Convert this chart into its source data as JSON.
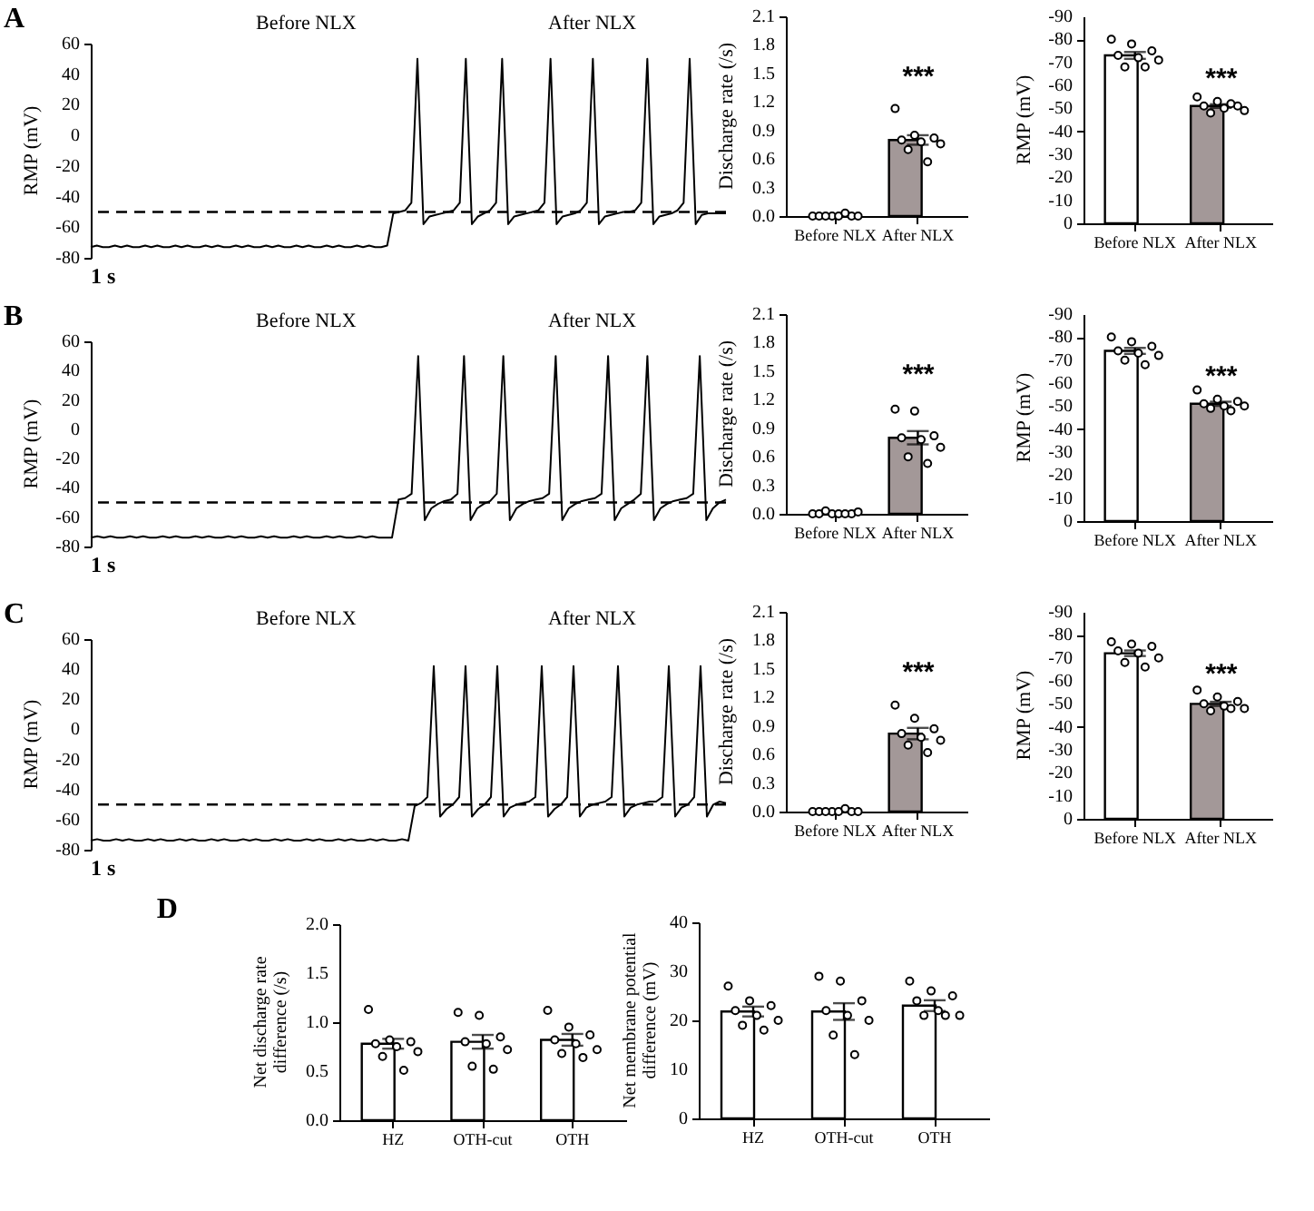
{
  "chart_data": [
    {
      "type": "line",
      "ylabel": "RMP (mV)",
      "ylim": [
        -80,
        60
      ],
      "yticks": [
        -80,
        -60,
        -40,
        -20,
        0,
        20,
        40,
        60
      ],
      "tick_labels": "y",
      "annotations": [
        "A",
        "Before NLX",
        "After NLX",
        "1 s"
      ],
      "ref_lines": [
        {
          "axis": "y",
          "value": -50,
          "line_style": "dashed",
          "color": "#000000"
        }
      ],
      "categories": [
        null,
        null,
        null,
        null,
        null,
        null,
        null,
        null,
        null,
        null,
        null,
        null,
        null,
        null,
        null,
        null,
        null,
        null,
        null,
        null,
        null,
        null,
        null,
        null,
        null,
        null,
        null,
        null,
        null,
        null,
        null,
        null,
        null,
        null,
        null,
        null,
        null,
        null,
        null,
        null,
        null,
        null,
        null,
        null,
        null,
        null,
        null,
        null,
        null,
        null,
        null,
        null,
        null,
        null,
        null,
        null,
        null,
        null,
        null,
        null,
        null,
        null,
        null,
        null,
        null,
        null,
        null,
        null,
        null,
        null,
        null,
        null,
        null,
        null,
        null,
        null,
        null,
        null,
        null,
        null,
        null,
        null,
        null,
        null,
        null,
        null,
        null,
        null,
        null,
        null,
        null,
        null,
        null,
        null,
        null,
        null,
        null,
        null,
        null,
        null,
        null,
        null,
        null,
        null,
        null,
        null
      ],
      "series": [
        {
          "type": "line",
          "color": "#000000",
          "values": [
            -73,
            -72,
            -73,
            -73,
            -72,
            -73,
            -72,
            -73,
            -73,
            -72,
            -73,
            -72,
            -73,
            -73,
            -72,
            -73,
            -72,
            -73,
            -73,
            -72,
            -73,
            -72,
            -73,
            -73,
            -72,
            -73,
            -72,
            -73,
            -73,
            -72,
            -73,
            -72,
            -73,
            -73,
            -72,
            -73,
            -72,
            -73,
            -73,
            -72,
            -73,
            -72,
            -73,
            -73,
            -72,
            -73,
            -72,
            -73,
            -73,
            -72,
            -51,
            -50,
            -49,
            -44,
            50,
            -58,
            -53,
            -52,
            -51,
            -50,
            -49,
            -44,
            50,
            -58,
            -53,
            -51,
            -49,
            -44,
            50,
            -58,
            -53,
            -52,
            -51,
            -50,
            -49,
            -44,
            50,
            -58,
            -53,
            -52,
            -51,
            -49,
            -44,
            50,
            -58,
            -53,
            -52,
            -51,
            -50,
            -50,
            -49,
            -44,
            50,
            -58,
            -53,
            -52,
            -51,
            -49,
            -44,
            50,
            -58,
            -52,
            -51,
            -51,
            -51,
            -51
          ]
        }
      ]
    },
    {
      "type": "bar",
      "categories": [
        "Before NLX",
        "After NLX"
      ],
      "ylabel": "Discharge rate (/s)",
      "ylim": [
        0,
        2.1
      ],
      "yticks": [
        {
          "value": 0,
          "label": "0.0"
        },
        0.3,
        0.6,
        0.9,
        1.2,
        1.5,
        1.8,
        2.1
      ],
      "annotations": [
        "***"
      ],
      "series": [
        {
          "type": "bar",
          "colors": [
            "#ffffff",
            "#a39898"
          ],
          "values": [
            0,
            0.8
          ],
          "errors": [
            null,
            0.05
          ]
        },
        {
          "type": "scatter",
          "color": "#000000",
          "marker": "circle",
          "x": [
            "Before NLX",
            "Before NLX",
            "Before NLX",
            "Before NLX",
            "Before NLX",
            "Before NLX",
            "Before NLX",
            "Before NLX",
            "After NLX",
            "After NLX",
            "After NLX",
            "After NLX",
            "After NLX",
            "After NLX",
            "After NLX",
            "After NLX"
          ],
          "values": [
            0,
            0,
            0,
            0,
            0,
            0,
            0,
            0.03,
            1.13,
            0.85,
            0.82,
            0.8,
            0.78,
            0.76,
            0.7,
            0.57
          ]
        }
      ]
    },
    {
      "type": "bar",
      "categories": [
        "Before NLX",
        "After NLX"
      ],
      "ylabel": "RMP (mV)",
      "ylim": [
        0,
        -90
      ],
      "yticks": [
        -90,
        -80,
        -70,
        -60,
        -50,
        -40,
        -30,
        -20,
        -10,
        0
      ],
      "annotations": [
        "***"
      ],
      "series": [
        {
          "type": "bar",
          "colors": [
            "#ffffff",
            "#a39898"
          ],
          "values": [
            -73,
            -51
          ],
          "errors": [
            1.5,
            0.8
          ]
        },
        {
          "type": "scatter",
          "color": "#000000",
          "marker": "circle",
          "x": [
            "Before NLX",
            "Before NLX",
            "Before NLX",
            "Before NLX",
            "Before NLX",
            "Before NLX",
            "Before NLX",
            "Before NLX",
            "After NLX",
            "After NLX",
            "After NLX",
            "After NLX",
            "After NLX",
            "After NLX",
            "After NLX",
            "After NLX"
          ],
          "values": [
            -80,
            -78,
            -75,
            -73,
            -72,
            -71,
            -68,
            -68,
            -55,
            -53,
            -51,
            -51,
            -50,
            -49,
            -48,
            -52
          ]
        }
      ]
    },
    {
      "type": "line",
      "ylabel": "RMP (mV)",
      "ylim": [
        -80,
        60
      ],
      "yticks": [
        -80,
        -60,
        -40,
        -20,
        0,
        20,
        40,
        60
      ],
      "tick_labels": "y",
      "annotations": [
        "B",
        "Before NLX",
        "After NLX",
        "1 s"
      ],
      "ref_lines": [
        {
          "axis": "y",
          "value": -50,
          "line_style": "dashed",
          "color": "#000000"
        }
      ],
      "categories": [
        null,
        null,
        null,
        null,
        null,
        null,
        null,
        null,
        null,
        null,
        null,
        null,
        null,
        null,
        null,
        null,
        null,
        null,
        null,
        null,
        null,
        null,
        null,
        null,
        null,
        null,
        null,
        null,
        null,
        null,
        null,
        null,
        null,
        null,
        null,
        null,
        null,
        null,
        null,
        null,
        null,
        null,
        null,
        null,
        null,
        null,
        null,
        null,
        null,
        null,
        null,
        null,
        null,
        null,
        null,
        null,
        null,
        null,
        null,
        null,
        null,
        null,
        null,
        null,
        null,
        null,
        null,
        null,
        null,
        null,
        null,
        null,
        null,
        null,
        null,
        null,
        null,
        null,
        null,
        null,
        null,
        null,
        null,
        null,
        null,
        null,
        null,
        null,
        null,
        null,
        null,
        null,
        null,
        null,
        null,
        null,
        null,
        null
      ],
      "series": [
        {
          "type": "line",
          "color": "#000000",
          "values": [
            -74,
            -73,
            -74,
            -73,
            -74,
            -74,
            -73,
            -74,
            -73,
            -74,
            -74,
            -73,
            -74,
            -73,
            -74,
            -74,
            -73,
            -74,
            -73,
            -74,
            -74,
            -73,
            -74,
            -73,
            -74,
            -74,
            -73,
            -74,
            -73,
            -74,
            -74,
            -73,
            -74,
            -73,
            -74,
            -74,
            -73,
            -74,
            -73,
            -74,
            -74,
            -73,
            -74,
            -73,
            -74,
            -74,
            -74,
            -48,
            -47,
            -44,
            50,
            -62,
            -54,
            -51,
            -49,
            -48,
            -44,
            50,
            -62,
            -54,
            -51,
            -49,
            -44,
            50,
            -62,
            -54,
            -51,
            -49,
            -48,
            -47,
            -44,
            50,
            -62,
            -54,
            -51,
            -49,
            -48,
            -47,
            -44,
            50,
            -62,
            -54,
            -51,
            -48,
            -44,
            50,
            -62,
            -54,
            -51,
            -49,
            -48,
            -47,
            -44,
            50,
            -62,
            -54,
            -50,
            -48
          ]
        }
      ]
    },
    {
      "type": "bar",
      "categories": [
        "Before NLX",
        "After NLX"
      ],
      "ylabel": "Discharge rate (/s)",
      "ylim": [
        0,
        2.1
      ],
      "yticks": [
        {
          "value": 0,
          "label": "0.0"
        },
        0.3,
        0.6,
        0.9,
        1.2,
        1.5,
        1.8,
        2.1
      ],
      "annotations": [
        "***"
      ],
      "series": [
        {
          "type": "bar",
          "colors": [
            "#ffffff",
            "#a39898"
          ],
          "values": [
            0,
            0.8
          ],
          "errors": [
            null,
            0.07
          ]
        },
        {
          "type": "scatter",
          "color": "#000000",
          "marker": "circle",
          "x": [
            "Before NLX",
            "Before NLX",
            "Before NLX",
            "Before NLX",
            "Before NLX",
            "Before NLX",
            "Before NLX",
            "Before NLX",
            "After NLX",
            "After NLX",
            "After NLX",
            "After NLX",
            "After NLX",
            "After NLX",
            "After NLX",
            "After NLX"
          ],
          "values": [
            0,
            0,
            0,
            0,
            0,
            0.02,
            0.03,
            0,
            1.1,
            1.08,
            0.82,
            0.8,
            0.78,
            0.7,
            0.6,
            0.53
          ]
        }
      ]
    },
    {
      "type": "bar",
      "categories": [
        "Before NLX",
        "After NLX"
      ],
      "ylabel": "RMP (mV)",
      "ylim": [
        0,
        -90
      ],
      "yticks": [
        -90,
        -80,
        -70,
        -60,
        -50,
        -40,
        -30,
        -20,
        -10,
        0
      ],
      "annotations": [
        "***"
      ],
      "series": [
        {
          "type": "bar",
          "colors": [
            "#ffffff",
            "#a39898"
          ],
          "values": [
            -74,
            -51
          ],
          "errors": [
            1.3,
            0.9
          ]
        },
        {
          "type": "scatter",
          "color": "#000000",
          "marker": "circle",
          "x": [
            "Before NLX",
            "Before NLX",
            "Before NLX",
            "Before NLX",
            "Before NLX",
            "Before NLX",
            "Before NLX",
            "Before NLX",
            "After NLX",
            "After NLX",
            "After NLX",
            "After NLX",
            "After NLX",
            "After NLX",
            "After NLX",
            "After NLX"
          ],
          "values": [
            -80,
            -78,
            -76,
            -74,
            -73,
            -72,
            -70,
            -68,
            -57,
            -53,
            -52,
            -51,
            -50,
            -50,
            -49,
            -48
          ]
        }
      ]
    },
    {
      "type": "line",
      "ylabel": "RMP (mV)",
      "ylim": [
        -80,
        60
      ],
      "yticks": [
        -80,
        -60,
        -40,
        -20,
        0,
        20,
        40,
        60
      ],
      "tick_labels": "y",
      "annotations": [
        "C",
        "Before NLX",
        "After NLX",
        "1 s"
      ],
      "ref_lines": [
        {
          "axis": "y",
          "value": -50,
          "line_style": "dashed",
          "color": "#000000"
        }
      ],
      "categories": [
        null,
        null,
        null,
        null,
        null,
        null,
        null,
        null,
        null,
        null,
        null,
        null,
        null,
        null,
        null,
        null,
        null,
        null,
        null,
        null,
        null,
        null,
        null,
        null,
        null,
        null,
        null,
        null,
        null,
        null,
        null,
        null,
        null,
        null,
        null,
        null,
        null,
        null,
        null,
        null,
        null,
        null,
        null,
        null,
        null,
        null,
        null,
        null,
        null,
        null,
        null,
        null,
        null,
        null,
        null,
        null,
        null,
        null,
        null,
        null,
        null,
        null,
        null,
        null,
        null,
        null,
        null,
        null,
        null,
        null,
        null,
        null,
        null,
        null,
        null,
        null,
        null,
        null,
        null,
        null,
        null,
        null,
        null,
        null,
        null,
        null,
        null,
        null,
        null,
        null,
        null,
        null,
        null,
        null,
        null,
        null,
        null,
        null,
        null,
        null,
        null
      ],
      "series": [
        {
          "type": "line",
          "color": "#000000",
          "values": [
            -74,
            -73,
            -74,
            -74,
            -73,
            -74,
            -73,
            -74,
            -74,
            -73,
            -74,
            -73,
            -74,
            -74,
            -73,
            -74,
            -73,
            -74,
            -74,
            -73,
            -74,
            -73,
            -74,
            -74,
            -73,
            -74,
            -73,
            -74,
            -74,
            -73,
            -74,
            -73,
            -74,
            -74,
            -73,
            -74,
            -73,
            -74,
            -74,
            -73,
            -74,
            -73,
            -74,
            -74,
            -73,
            -74,
            -73,
            -74,
            -74,
            -73,
            -74,
            -51,
            -49,
            -45,
            42,
            -58,
            -53,
            -50,
            -45,
            42,
            -58,
            -53,
            -50,
            -45,
            42,
            -58,
            -52,
            -50,
            -49,
            -48,
            -45,
            42,
            -58,
            -53,
            -50,
            -45,
            42,
            -58,
            -52,
            -50,
            -49,
            -48,
            -45,
            42,
            -58,
            -52,
            -50,
            -49,
            -48,
            -48,
            -45,
            42,
            -58,
            -52,
            -50,
            -45,
            42,
            -58,
            -50,
            -48,
            -49
          ]
        }
      ]
    },
    {
      "type": "bar",
      "categories": [
        "Before NLX",
        "After NLX"
      ],
      "ylabel": "Discharge rate (/s)",
      "ylim": [
        0,
        2.1
      ],
      "yticks": [
        {
          "value": 0,
          "label": "0.0"
        },
        0.3,
        0.6,
        0.9,
        1.2,
        1.5,
        1.8,
        2.1
      ],
      "annotations": [
        "***"
      ],
      "series": [
        {
          "type": "bar",
          "colors": [
            "#ffffff",
            "#a39898"
          ],
          "values": [
            0,
            0.82
          ],
          "errors": [
            null,
            0.06
          ]
        },
        {
          "type": "scatter",
          "color": "#000000",
          "marker": "circle",
          "x": [
            "Before NLX",
            "Before NLX",
            "Before NLX",
            "Before NLX",
            "Before NLX",
            "Before NLX",
            "Before NLX",
            "Before NLX",
            "After NLX",
            "After NLX",
            "After NLX",
            "After NLX",
            "After NLX",
            "After NLX",
            "After NLX",
            "After NLX"
          ],
          "values": [
            0,
            0,
            0,
            0,
            0,
            0,
            0,
            0.03,
            1.12,
            0.98,
            0.87,
            0.82,
            0.78,
            0.75,
            0.7,
            0.62
          ]
        }
      ]
    },
    {
      "type": "bar",
      "categories": [
        "Before NLX",
        "After NLX"
      ],
      "ylabel": "RMP (mV)",
      "ylim": [
        0,
        -90
      ],
      "yticks": [
        -90,
        -80,
        -70,
        -60,
        -50,
        -40,
        -30,
        -20,
        -10,
        0
      ],
      "annotations": [
        "***"
      ],
      "series": [
        {
          "type": "bar",
          "colors": [
            "#ffffff",
            "#a39898"
          ],
          "values": [
            -72,
            -50
          ],
          "errors": [
            1.2,
            0.9
          ]
        },
        {
          "type": "scatter",
          "color": "#000000",
          "marker": "circle",
          "x": [
            "Before NLX",
            "Before NLX",
            "Before NLX",
            "Before NLX",
            "Before NLX",
            "Before NLX",
            "Before NLX",
            "Before NLX",
            "After NLX",
            "After NLX",
            "After NLX",
            "After NLX",
            "After NLX",
            "After NLX",
            "After NLX",
            "After NLX"
          ],
          "values": [
            -77,
            -76,
            -75,
            -73,
            -72,
            -70,
            -68,
            -66,
            -56,
            -53,
            -51,
            -50,
            -49,
            -48,
            -47,
            -48
          ]
        }
      ]
    },
    {
      "type": "bar",
      "categories": [
        "HZ",
        "OTH-cut",
        "OTH"
      ],
      "ylabel": "Net discharge rate difference (/s)",
      "ylim": [
        0,
        2.0
      ],
      "yticks": [
        {
          "value": 0,
          "label": "0.0"
        },
        0.5,
        {
          "value": 1,
          "label": "1.0"
        },
        1.5,
        {
          "value": 2,
          "label": "2.0"
        }
      ],
      "annotations": [
        "D"
      ],
      "series": [
        {
          "type": "bar",
          "colors": [
            "#ffffff",
            "#ffffff",
            "#ffffff"
          ],
          "values": [
            0.78,
            0.8,
            0.82
          ],
          "errors": [
            0.05,
            0.07,
            0.06
          ]
        },
        {
          "type": "scatter",
          "color": "#000000",
          "marker": "circle",
          "x": [
            "HZ",
            "HZ",
            "HZ",
            "HZ",
            "HZ",
            "HZ",
            "HZ",
            "HZ",
            "OTH-cut",
            "OTH-cut",
            "OTH-cut",
            "OTH-cut",
            "OTH-cut",
            "OTH-cut",
            "OTH-cut",
            "OTH-cut",
            "OTH",
            "OTH",
            "OTH",
            "OTH",
            "OTH",
            "OTH",
            "OTH",
            "OTH"
          ],
          "values": [
            1.13,
            0.82,
            0.8,
            0.78,
            0.75,
            0.7,
            0.65,
            0.51,
            1.1,
            1.07,
            0.85,
            0.8,
            0.78,
            0.72,
            0.55,
            0.52,
            1.12,
            0.95,
            0.87,
            0.82,
            0.78,
            0.72,
            0.68,
            0.64
          ]
        }
      ]
    },
    {
      "type": "bar",
      "categories": [
        "HZ",
        "OTH-cut",
        "OTH"
      ],
      "ylabel": "Net membrane potential difference (mV)",
      "ylim": [
        0,
        40
      ],
      "yticks": [
        0,
        10,
        20,
        30,
        40
      ],
      "series": [
        {
          "type": "bar",
          "colors": [
            "#ffffff",
            "#ffffff",
            "#ffffff"
          ],
          "values": [
            21.8,
            21.8,
            23
          ],
          "errors": [
            1,
            1.7,
            1.1
          ]
        },
        {
          "type": "scatter",
          "color": "#000000",
          "marker": "circle",
          "x": [
            "HZ",
            "HZ",
            "HZ",
            "HZ",
            "HZ",
            "HZ",
            "HZ",
            "HZ",
            "OTH-cut",
            "OTH-cut",
            "OTH-cut",
            "OTH-cut",
            "OTH-cut",
            "OTH-cut",
            "OTH-cut",
            "OTH-cut",
            "OTH",
            "OTH",
            "OTH",
            "OTH",
            "OTH",
            "OTH",
            "OTH",
            "OTH"
          ],
          "values": [
            27,
            24,
            23,
            22,
            21,
            20,
            19,
            18,
            29,
            28,
            24,
            22,
            21,
            20,
            17,
            13,
            28,
            26,
            25,
            24,
            22,
            21,
            21,
            21
          ]
        }
      ]
    }
  ]
}
